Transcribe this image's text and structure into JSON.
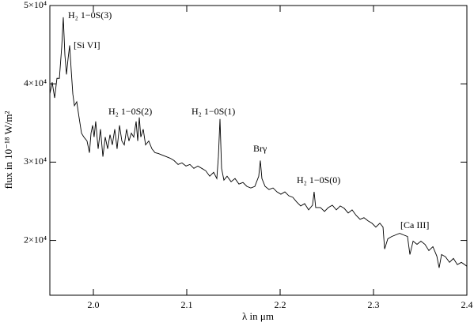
{
  "chart_data": {
    "type": "line",
    "xlabel": "λ in μm",
    "ylabel": "flux in 10⁻¹⁸ W/m²",
    "color": "#000000",
    "xlim": [
      1.9534,
      2.4
    ],
    "ylim": [
      13000,
      50000
    ],
    "xticks": [
      {
        "value": 2.0,
        "label": "2.0"
      },
      {
        "value": 2.1,
        "label": "2.1"
      },
      {
        "value": 2.2,
        "label": "2.2"
      },
      {
        "value": 2.3,
        "label": "2.3"
      },
      {
        "value": 2.4,
        "label": "2.4"
      }
    ],
    "yticks": [
      {
        "value": 20000,
        "label": "2×10⁴"
      },
      {
        "value": 30000,
        "label": "3×10⁴"
      },
      {
        "value": 40000,
        "label": "4×10⁴"
      },
      {
        "value": 50000,
        "label": "5×10⁴"
      }
    ],
    "annotations": [
      "H₂ 1−0S(3)",
      "[Si VI]",
      "H₂ 1−0S(2)",
      "H₂ 1−0S(1)",
      "Brγ",
      "H₂ 1−0S(0)",
      "[Ca III]"
    ],
    "x": [
      1.9534,
      1.9559,
      1.9585,
      1.961,
      1.9636,
      1.9661,
      1.9678,
      1.9695,
      1.9712,
      1.9729,
      1.9746,
      1.9763,
      1.978,
      1.9797,
      1.9822,
      1.9847,
      1.9873,
      1.9898,
      1.9932,
      1.9958,
      1.9975,
      1.9992,
      2.0008,
      2.0025,
      2.0051,
      2.0076,
      2.0102,
      2.0127,
      2.0153,
      2.0178,
      2.0203,
      2.0229,
      2.0254,
      2.028,
      2.0305,
      2.0331,
      2.0356,
      2.0381,
      2.0407,
      2.0432,
      2.0458,
      2.0475,
      2.0492,
      2.0508,
      2.0534,
      2.0559,
      2.0593,
      2.0627,
      2.0661,
      2.0695,
      2.0737,
      2.078,
      2.0822,
      2.0864,
      2.0907,
      2.0949,
      2.0992,
      2.1034,
      2.1076,
      2.1119,
      2.1161,
      2.1203,
      2.1246,
      2.1288,
      2.1322,
      2.1339,
      2.1356,
      2.1373,
      2.1398,
      2.1432,
      2.1475,
      2.1517,
      2.1559,
      2.1602,
      2.1644,
      2.1686,
      2.1729,
      2.1771,
      2.1788,
      2.1805,
      2.1839,
      2.1881,
      2.1924,
      2.1966,
      2.2008,
      2.2051,
      2.2093,
      2.2136,
      2.2178,
      2.222,
      2.2263,
      2.2305,
      2.2347,
      2.2364,
      2.2381,
      2.2432,
      2.2475,
      2.2517,
      2.2559,
      2.2602,
      2.2644,
      2.2686,
      2.2729,
      2.2771,
      2.2814,
      2.2856,
      2.2898,
      2.2941,
      2.2983,
      2.3025,
      2.3068,
      2.3102,
      2.3119,
      2.3153,
      2.3195,
      2.3237,
      2.328,
      2.3322,
      2.3364,
      2.339,
      2.3424,
      2.3466,
      2.3508,
      2.3551,
      2.3593,
      2.3636,
      2.3678,
      2.3703,
      2.3729,
      2.3771,
      2.3814,
      2.3856,
      2.3898,
      2.3941,
      2.4
    ],
    "values": [
      38700,
      40200,
      38200,
      40700,
      40700,
      44700,
      48500,
      43700,
      41200,
      43200,
      44900,
      41700,
      38700,
      37200,
      37700,
      35700,
      33700,
      33200,
      32700,
      31200,
      33700,
      34700,
      33200,
      35200,
      31700,
      34200,
      30700,
      33200,
      31700,
      33500,
      32200,
      34200,
      31700,
      34700,
      32700,
      32200,
      34200,
      32700,
      33700,
      33200,
      35200,
      32700,
      35700,
      33200,
      34200,
      32200,
      32700,
      31700,
      31200,
      31100,
      30900,
      30700,
      30500,
      30200,
      29700,
      29900,
      29500,
      29700,
      29200,
      29500,
      29200,
      28900,
      28200,
      28700,
      27900,
      30700,
      35500,
      29200,
      27700,
      28200,
      27500,
      27900,
      27200,
      27400,
      26900,
      26700,
      26900,
      28200,
      30200,
      27900,
      26900,
      26500,
      26700,
      26200,
      25900,
      26200,
      25700,
      25500,
      24900,
      24400,
      24700,
      23900,
      24500,
      26200,
      24200,
      24200,
      23700,
      24200,
      24500,
      23900,
      24400,
      24100,
      23500,
      23900,
      23200,
      22700,
      22900,
      22500,
      22200,
      21700,
      22200,
      21700,
      18900,
      20200,
      20500,
      20700,
      20900,
      20700,
      20500,
      18200,
      19900,
      19500,
      19900,
      19500,
      18700,
      19200,
      18000,
      16500,
      18200,
      17900,
      17200,
      17700,
      16900,
      17200,
      16700
    ]
  }
}
